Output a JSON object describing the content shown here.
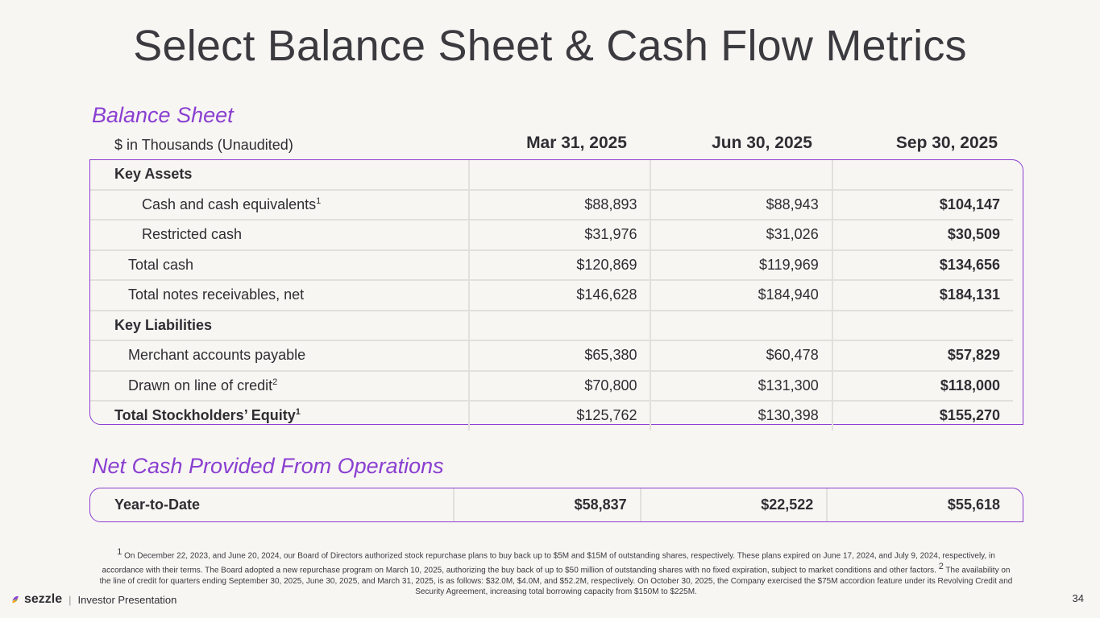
{
  "title": "Select Balance Sheet & Cash Flow Metrics",
  "balance_sheet": {
    "section_title": "Balance Sheet",
    "unit_label": "$ in Thousands (Unaudited)",
    "columns": [
      "Mar 31, 2025",
      "Jun 30, 2025",
      "Sep 30, 2025"
    ],
    "rows": [
      {
        "label": "Key Assets",
        "sup": "",
        "values": [
          "",
          "",
          ""
        ]
      },
      {
        "label": "Cash and cash equivalents",
        "sup": "1",
        "values": [
          "$88,893",
          "$88,943",
          "$104,147"
        ]
      },
      {
        "label": "Restricted cash",
        "sup": "",
        "values": [
          "$31,976",
          "$31,026",
          "$30,509"
        ]
      },
      {
        "label": "Total cash",
        "sup": "",
        "values": [
          "$120,869",
          "$119,969",
          "$134,656"
        ]
      },
      {
        "label": "Total notes receivables, net",
        "sup": "",
        "values": [
          "$146,628",
          "$184,940",
          "$184,131"
        ]
      },
      {
        "label": "Key Liabilities",
        "sup": "",
        "values": [
          "",
          "",
          ""
        ]
      },
      {
        "label": "Merchant accounts payable",
        "sup": "",
        "values": [
          "$65,380",
          "$60,478",
          "$57,829"
        ]
      },
      {
        "label": "Drawn on line of credit",
        "sup": "2",
        "values": [
          "$70,800",
          "$131,300",
          "$118,000"
        ]
      },
      {
        "label": "Total Stockholders’ Equity",
        "sup": "1",
        "values": [
          "$125,762",
          "$130,398",
          "$155,270"
        ]
      }
    ]
  },
  "cash_flow": {
    "section_title": "Net Cash Provided From Operations",
    "row": {
      "label": "Year-to-Date",
      "values": [
        "$58,837",
        "$22,522",
        "$55,618"
      ]
    }
  },
  "footnote": {
    "sup1": "1",
    "text1": " On December 22, 2023, and June 20, 2024, our Board of Directors authorized stock repurchase plans to buy back up to $5M and $15M of outstanding shares, respectively. These plans expired on June 17, 2024, and July 9, 2024, respectively, in accordance with their terms. The Board adopted a new repurchase program on March 10, 2025, authorizing the buy back of up to $50 million of outstanding shares with no fixed expiration, subject to market conditions and other factors. ",
    "sup2": "2",
    "text2": " The availability on the line of credit for quarters ending September 30, 2025, June 30, 2025, and March 31, 2025, is as follows: $32.0M, $4.0M, and $52.2M, respectively. On October 30, 2025, the Company exercised the $75M accordion feature under its Revolving Credit and Security Agreement, increasing total borrowing capacity from $150M to $225M."
  },
  "footer": {
    "brand": "sezzle",
    "separator": "|",
    "label": "Investor Presentation",
    "page_number": "34"
  },
  "colors": {
    "accent": "#8a3fd1",
    "background": "#f8f6f3",
    "text": "#2e2e33"
  }
}
